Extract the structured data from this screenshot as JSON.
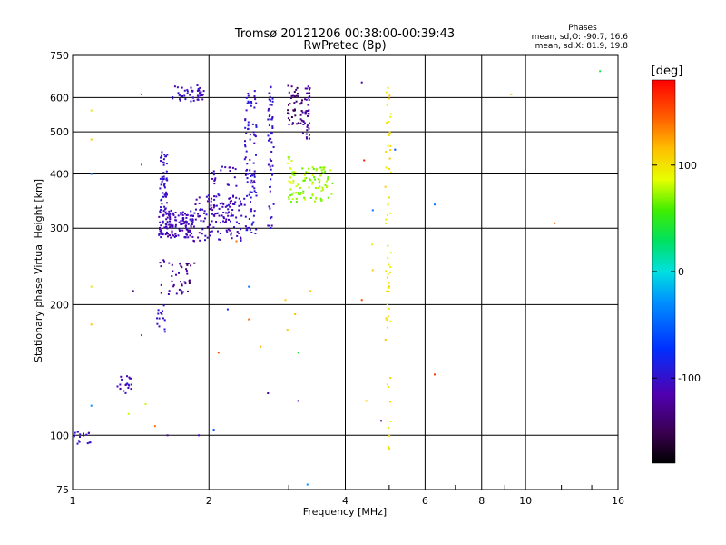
{
  "chart_data": {
    "type": "scatter",
    "title": "Tromsø 20121206 00:38:00-00:39:43",
    "subtitle": "RwPretec (8p)",
    "xlabel": "Frequency [MHz]",
    "ylabel": "Stationary phase Virtual Height [km]",
    "x_scale": "log",
    "y_scale": "log",
    "xlim": [
      1,
      16
    ],
    "ylim": [
      75,
      750
    ],
    "x_ticks": [
      1,
      2,
      4,
      6,
      8,
      10,
      16
    ],
    "y_ticks": [
      75,
      100,
      200,
      300,
      400,
      500,
      600,
      750
    ],
    "grid": true,
    "colorbar": {
      "label": "[deg]",
      "range": [
        -180,
        180
      ],
      "ticks": [
        100,
        0,
        -100
      ],
      "colormap": "rainbow"
    },
    "phase_stats": {
      "heading": "Phases",
      "line1": "mean, sd,O: -90.7, 16.6",
      "line2": "mean, sd,X:  81.9, 19.8"
    },
    "clusters": [
      {
        "f": [
          1.66,
          1.95
        ],
        "h": [
          583,
          640
        ],
        "phase": -105,
        "n": 45
      },
      {
        "f": [
          1.55,
          1.85
        ],
        "h": [
          285,
          330
        ],
        "phase": -110,
        "n": 140
      },
      {
        "f": [
          1.85,
          2.4
        ],
        "h": [
          280,
          360
        ],
        "phase": -108,
        "n": 110
      },
      {
        "f": [
          1.56,
          1.62
        ],
        "h": [
          300,
          450
        ],
        "phase": -100,
        "n": 60
      },
      {
        "f": [
          2.4,
          2.55
        ],
        "h": [
          290,
          630
        ],
        "phase": -100,
        "n": 90
      },
      {
        "f": [
          2.7,
          2.78
        ],
        "h": [
          300,
          640
        ],
        "phase": -100,
        "n": 55
      },
      {
        "f": [
          2.02,
          2.3
        ],
        "h": [
          310,
          420
        ],
        "phase": -108,
        "n": 50
      },
      {
        "f": [
          2.98,
          3.22
        ],
        "h": [
          520,
          640
        ],
        "phase": -140,
        "n": 45
      },
      {
        "f": [
          3.22,
          3.35
        ],
        "h": [
          480,
          640
        ],
        "phase": -120,
        "n": 40
      },
      {
        "f": [
          3.0,
          3.75
        ],
        "h": [
          345,
          415
        ],
        "phase": 72,
        "n": 95
      },
      {
        "f": [
          2.98,
          3.05
        ],
        "h": [
          380,
          440
        ],
        "phase": 80,
        "n": 10
      },
      {
        "f": [
          1.55,
          1.8
        ],
        "h": [
          210,
          255
        ],
        "phase": -120,
        "n": 35
      },
      {
        "f": [
          1.78,
          1.88
        ],
        "h": [
          220,
          250
        ],
        "phase": -140,
        "n": 10
      },
      {
        "f": [
          1.53,
          1.6
        ],
        "h": [
          170,
          200
        ],
        "phase": -100,
        "n": 14
      },
      {
        "f": [
          1.25,
          1.35
        ],
        "h": [
          125,
          137
        ],
        "phase": -108,
        "n": 20
      },
      {
        "f": [
          1.0,
          1.1
        ],
        "h": [
          95,
          102
        ],
        "phase": -100,
        "n": 18
      },
      {
        "f": [
          4.9,
          5.05
        ],
        "h": [
          90,
          660
        ],
        "phase": 100,
        "n": 60
      }
    ],
    "points": [
      {
        "f": 1.1,
        "h": 560,
        "phase": 100
      },
      {
        "f": 1.1,
        "h": 480,
        "phase": 110
      },
      {
        "f": 1.1,
        "h": 220,
        "phase": 100
      },
      {
        "f": 1.1,
        "h": 180,
        "phase": 115
      },
      {
        "f": 1.1,
        "h": 400,
        "phase": -40
      },
      {
        "f": 1.42,
        "h": 610,
        "phase": -40
      },
      {
        "f": 1.42,
        "h": 420,
        "phase": -40
      },
      {
        "f": 1.36,
        "h": 215,
        "phase": -130
      },
      {
        "f": 1.42,
        "h": 170,
        "phase": -50
      },
      {
        "f": 1.45,
        "h": 118,
        "phase": 80
      },
      {
        "f": 1.52,
        "h": 105,
        "phase": 140
      },
      {
        "f": 1.33,
        "h": 112,
        "phase": 80
      },
      {
        "f": 1.1,
        "h": 117,
        "phase": -30
      },
      {
        "f": 1.9,
        "h": 100,
        "phase": -110
      },
      {
        "f": 1.62,
        "h": 100,
        "phase": -120
      },
      {
        "f": 2.05,
        "h": 103,
        "phase": -60
      },
      {
        "f": 2.1,
        "h": 155,
        "phase": 150
      },
      {
        "f": 2.2,
        "h": 195,
        "phase": -80
      },
      {
        "f": 2.45,
        "h": 220,
        "phase": -40
      },
      {
        "f": 2.45,
        "h": 185,
        "phase": 140
      },
      {
        "f": 2.6,
        "h": 160,
        "phase": 120
      },
      {
        "f": 2.7,
        "h": 125,
        "phase": -130
      },
      {
        "f": 2.3,
        "h": 280,
        "phase": 140
      },
      {
        "f": 2.95,
        "h": 205,
        "phase": 110
      },
      {
        "f": 2.98,
        "h": 175,
        "phase": 110
      },
      {
        "f": 3.1,
        "h": 190,
        "phase": 115
      },
      {
        "f": 3.15,
        "h": 155,
        "phase": 40
      },
      {
        "f": 3.15,
        "h": 120,
        "phase": -130
      },
      {
        "f": 3.35,
        "h": 215,
        "phase": 110
      },
      {
        "f": 3.3,
        "h": 77,
        "phase": -30
      },
      {
        "f": 4.35,
        "h": 650,
        "phase": -120
      },
      {
        "f": 4.4,
        "h": 430,
        "phase": 170
      },
      {
        "f": 4.35,
        "h": 205,
        "phase": 160
      },
      {
        "f": 4.45,
        "h": 120,
        "phase": 110
      },
      {
        "f": 4.6,
        "h": 240,
        "phase": 110
      },
      {
        "f": 4.58,
        "h": 275,
        "phase": 90
      },
      {
        "f": 4.6,
        "h": 330,
        "phase": -40
      },
      {
        "f": 4.8,
        "h": 108,
        "phase": -120
      },
      {
        "f": 5.15,
        "h": 455,
        "phase": -60
      },
      {
        "f": 6.3,
        "h": 340,
        "phase": -40
      },
      {
        "f": 6.3,
        "h": 138,
        "phase": 160
      },
      {
        "f": 9.3,
        "h": 610,
        "phase": 110
      },
      {
        "f": 11.6,
        "h": 308,
        "phase": 140
      },
      {
        "f": 14.6,
        "h": 690,
        "phase": 40
      }
    ]
  }
}
